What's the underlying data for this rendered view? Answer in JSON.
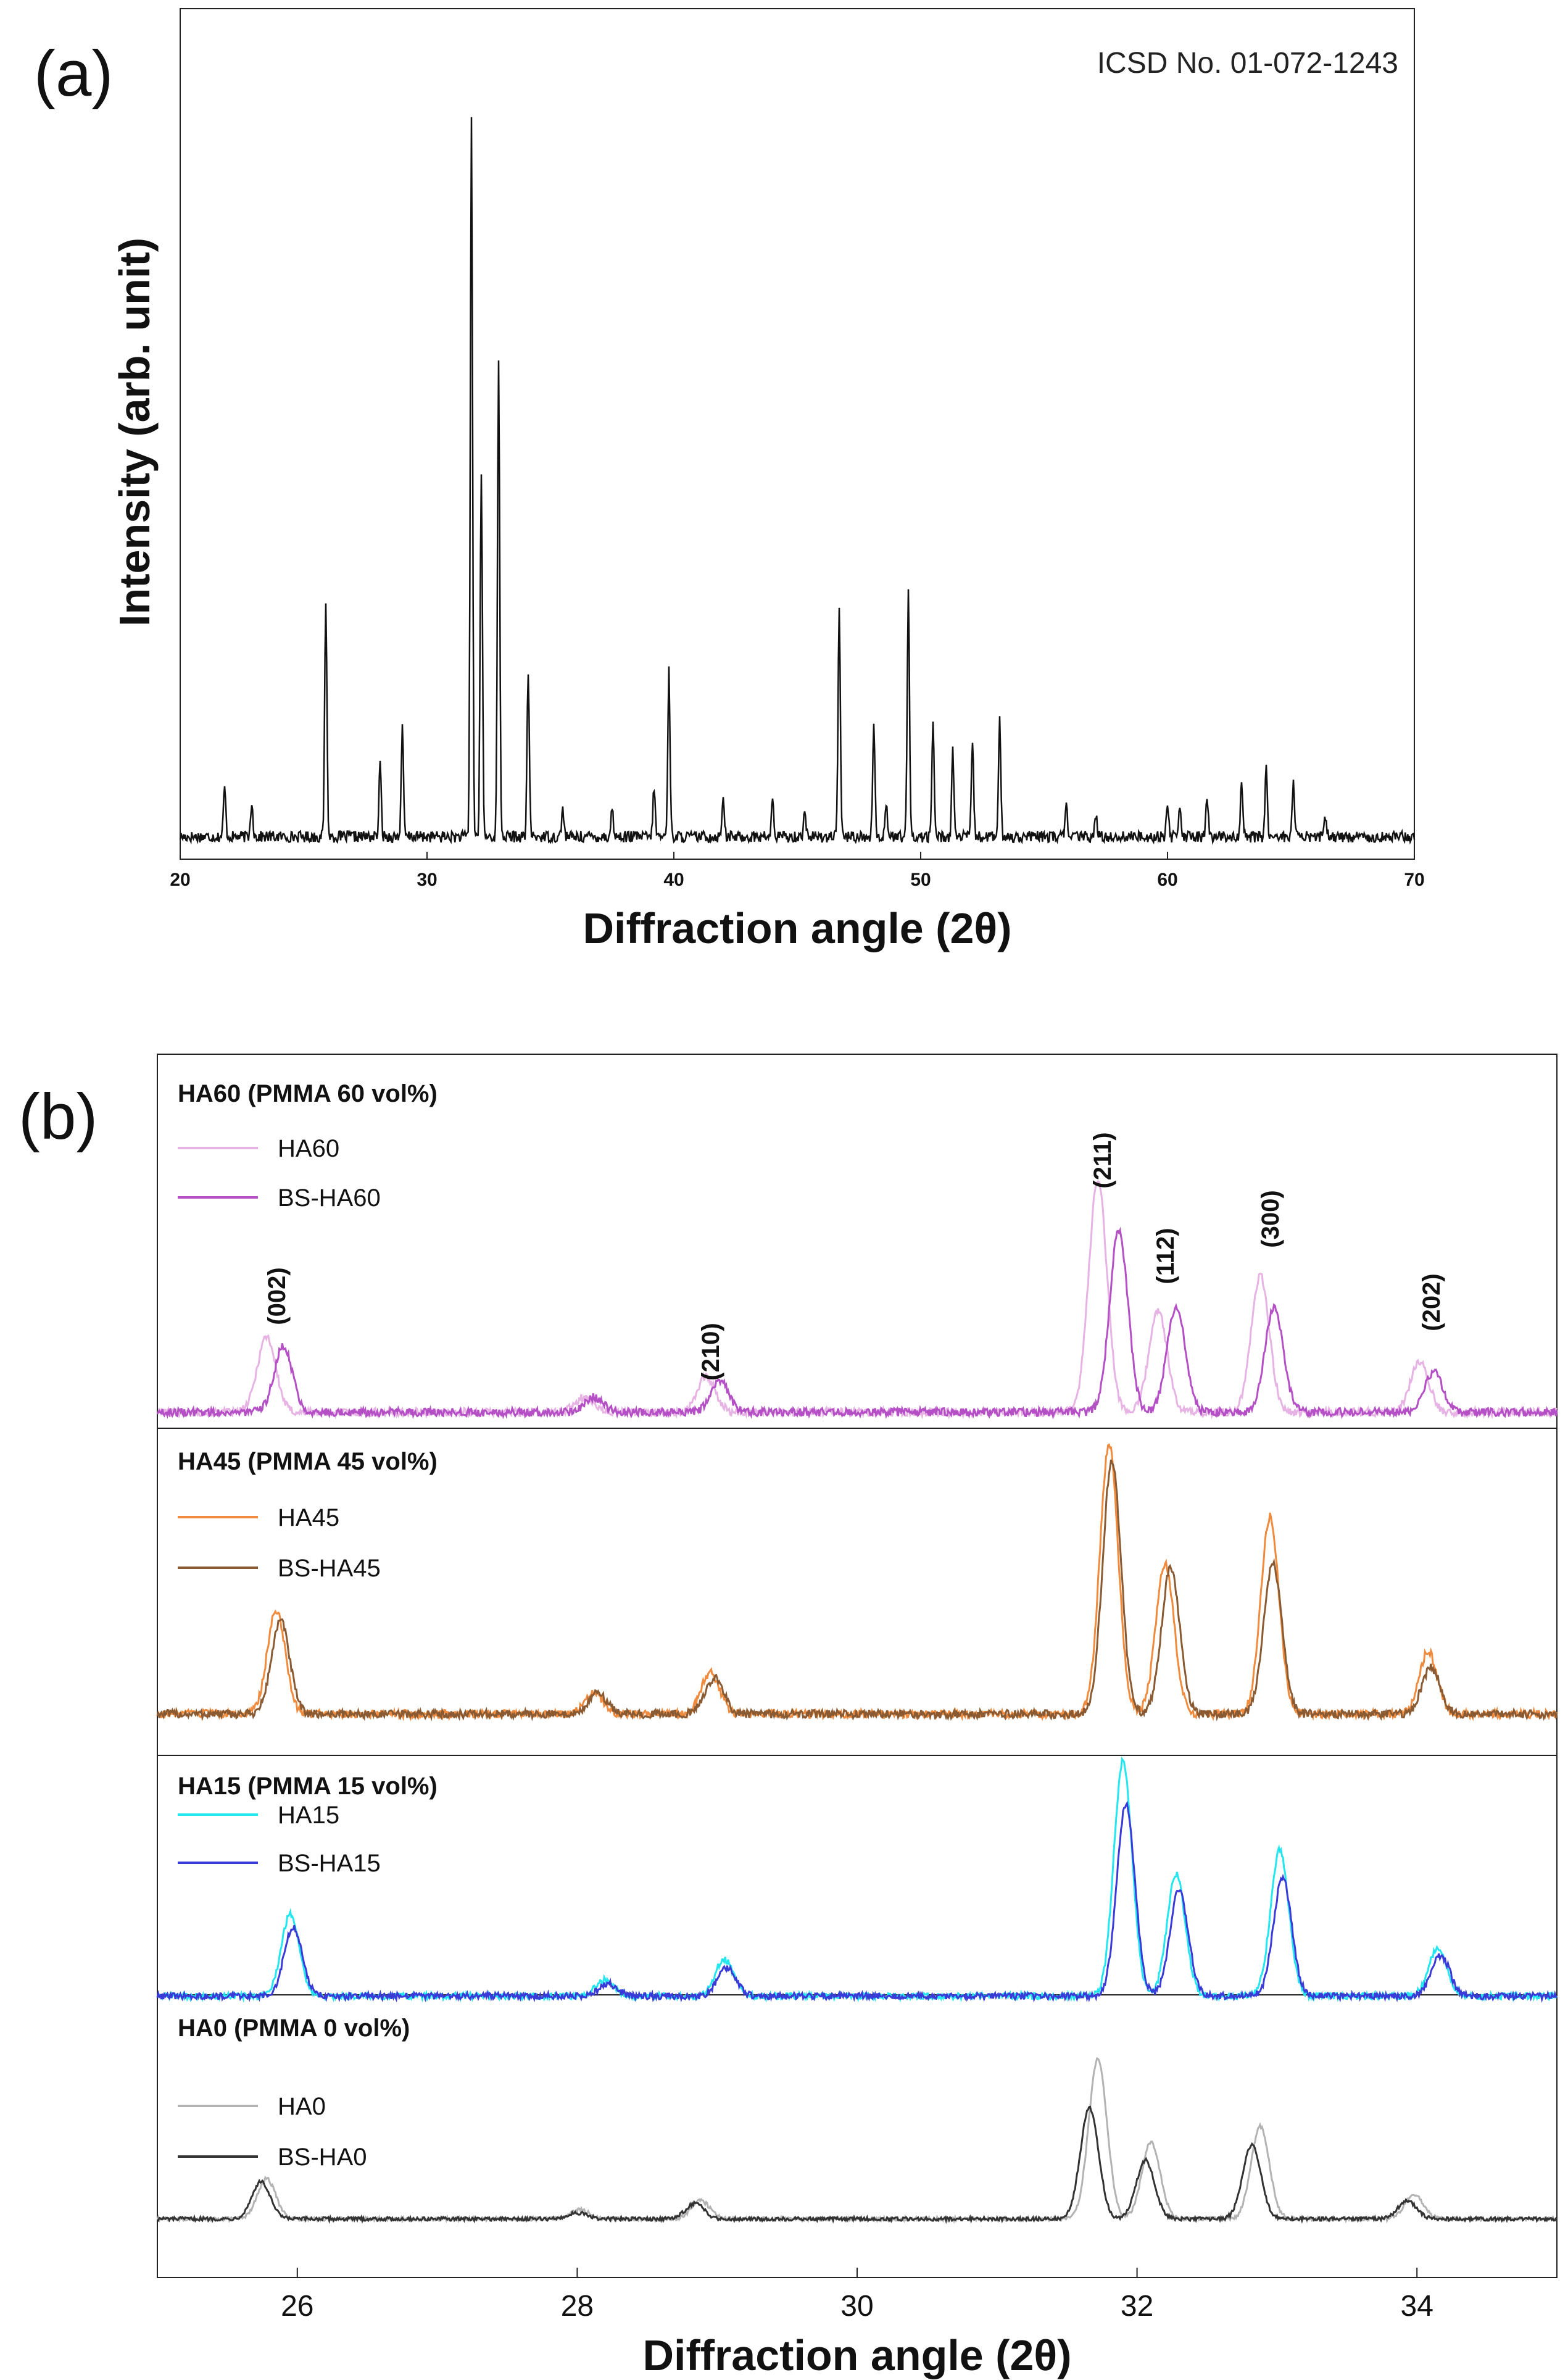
{
  "chart_data": [
    {
      "panel": "(a)",
      "type": "line",
      "title": "ICSD No. 01-072-1243",
      "xlabel": "Diffraction angle (2θ)",
      "ylabel": "Intensity (arb. unit)",
      "xlim": [
        20,
        70
      ],
      "xticks": [
        20,
        30,
        40,
        50,
        60,
        70
      ],
      "ylim": [
        0,
        100
      ],
      "baseline": 1.5,
      "noise_amp": 0.8,
      "peaks": [
        {
          "x": 21.8,
          "h": 7
        },
        {
          "x": 22.9,
          "h": 5
        },
        {
          "x": 25.9,
          "h": 33
        },
        {
          "x": 28.1,
          "h": 10
        },
        {
          "x": 29.0,
          "h": 15
        },
        {
          "x": 31.8,
          "h": 100
        },
        {
          "x": 32.2,
          "h": 51
        },
        {
          "x": 32.9,
          "h": 66
        },
        {
          "x": 34.1,
          "h": 23
        },
        {
          "x": 35.5,
          "h": 4
        },
        {
          "x": 37.5,
          "h": 4
        },
        {
          "x": 39.2,
          "h": 7
        },
        {
          "x": 39.8,
          "h": 23
        },
        {
          "x": 42.0,
          "h": 6
        },
        {
          "x": 44.0,
          "h": 5
        },
        {
          "x": 45.3,
          "h": 4
        },
        {
          "x": 46.7,
          "h": 32
        },
        {
          "x": 48.1,
          "h": 16
        },
        {
          "x": 48.6,
          "h": 5
        },
        {
          "x": 49.5,
          "h": 34
        },
        {
          "x": 50.5,
          "h": 16
        },
        {
          "x": 51.3,
          "h": 12
        },
        {
          "x": 52.1,
          "h": 13
        },
        {
          "x": 53.2,
          "h": 16
        },
        {
          "x": 55.9,
          "h": 5
        },
        {
          "x": 57.1,
          "h": 3
        },
        {
          "x": 60.0,
          "h": 5
        },
        {
          "x": 60.5,
          "h": 4
        },
        {
          "x": 61.6,
          "h": 6
        },
        {
          "x": 63.0,
          "h": 8
        },
        {
          "x": 64.0,
          "h": 10
        },
        {
          "x": 65.1,
          "h": 8
        },
        {
          "x": 66.4,
          "h": 3
        }
      ]
    },
    {
      "panel": "(b)",
      "type": "line",
      "xlabel": "Diffraction angle (2θ)",
      "xlim": [
        25,
        35
      ],
      "xticks": [
        26,
        28,
        30,
        32,
        34
      ],
      "peak_labels": [
        {
          "text": "(002)",
          "x": 25.85
        },
        {
          "text": "(210)",
          "x": 28.95
        },
        {
          "text": "(211)",
          "x": 31.75
        },
        {
          "text": "(112)",
          "x": 32.2
        },
        {
          "text": "(300)",
          "x": 32.95
        },
        {
          "text": "(202)",
          "x": 34.1
        }
      ],
      "groups": [
        {
          "title": "HA60 (PMMA 60 vol%)",
          "series": [
            {
              "name": "HA60",
              "color": "#e7b3e5",
              "width": 3,
              "noise_amp": 0.8,
              "peaks": [
                {
                  "x": 25.78,
                  "h": 15
                },
                {
                  "x": 28.05,
                  "h": 3
                },
                {
                  "x": 28.92,
                  "h": 7
                },
                {
                  "x": 31.72,
                  "h": 46
                },
                {
                  "x": 32.15,
                  "h": 20
                },
                {
                  "x": 32.88,
                  "h": 27
                },
                {
                  "x": 34.02,
                  "h": 10
                }
              ]
            },
            {
              "name": "BS-HA60",
              "color": "#b44fc6",
              "width": 3,
              "noise_amp": 0.8,
              "peaks": [
                {
                  "x": 25.9,
                  "h": 13
                },
                {
                  "x": 28.12,
                  "h": 3
                },
                {
                  "x": 29.02,
                  "h": 6
                },
                {
                  "x": 31.87,
                  "h": 36
                },
                {
                  "x": 32.28,
                  "h": 21
                },
                {
                  "x": 32.98,
                  "h": 21
                },
                {
                  "x": 34.12,
                  "h": 8
                }
              ]
            }
          ]
        },
        {
          "title": "HA45 (PMMA 45 vol%)",
          "series": [
            {
              "name": "HA45",
              "color": "#f08a3d",
              "width": 3,
              "noise_amp": 0.8,
              "peaks": [
                {
                  "x": 25.85,
                  "h": 20
                },
                {
                  "x": 28.12,
                  "h": 4
                },
                {
                  "x": 28.95,
                  "h": 8
                },
                {
                  "x": 31.8,
                  "h": 52
                },
                {
                  "x": 32.2,
                  "h": 29
                },
                {
                  "x": 32.95,
                  "h": 38
                },
                {
                  "x": 34.08,
                  "h": 12
                }
              ]
            },
            {
              "name": "BS-HA45",
              "color": "#8a5a32",
              "width": 3,
              "noise_amp": 0.8,
              "peaks": [
                {
                  "x": 25.88,
                  "h": 18
                },
                {
                  "x": 28.15,
                  "h": 4
                },
                {
                  "x": 28.98,
                  "h": 7
                },
                {
                  "x": 31.82,
                  "h": 49
                },
                {
                  "x": 32.24,
                  "h": 28
                },
                {
                  "x": 32.97,
                  "h": 29
                },
                {
                  "x": 34.1,
                  "h": 9
                }
              ]
            }
          ]
        },
        {
          "title": "HA15 (PMMA 15 vol%)",
          "series": [
            {
              "name": "HA15",
              "color": "#22e6f0",
              "width": 3,
              "noise_amp": 0.8,
              "peaks": [
                {
                  "x": 25.95,
                  "h": 20
                },
                {
                  "x": 28.2,
                  "h": 4
                },
                {
                  "x": 29.05,
                  "h": 9
                },
                {
                  "x": 31.9,
                  "h": 58
                },
                {
                  "x": 32.28,
                  "h": 30
                },
                {
                  "x": 33.02,
                  "h": 36
                },
                {
                  "x": 34.15,
                  "h": 12
                }
              ]
            },
            {
              "name": "BS-HA15",
              "color": "#3a3ad8",
              "width": 3,
              "noise_amp": 0.8,
              "peaks": [
                {
                  "x": 25.97,
                  "h": 17
                },
                {
                  "x": 28.22,
                  "h": 3
                },
                {
                  "x": 29.07,
                  "h": 7
                },
                {
                  "x": 31.92,
                  "h": 47
                },
                {
                  "x": 32.3,
                  "h": 26
                },
                {
                  "x": 33.04,
                  "h": 29
                },
                {
                  "x": 34.17,
                  "h": 10
                }
              ]
            }
          ]
        },
        {
          "title": "HA0 (PMMA 0 vol%)",
          "series": [
            {
              "name": "HA0",
              "color": "#b3b3b3",
              "width": 3,
              "noise_amp": 0.6,
              "peaks": [
                {
                  "x": 25.78,
                  "h": 13
                },
                {
                  "x": 28.02,
                  "h": 3
                },
                {
                  "x": 28.88,
                  "h": 6
                },
                {
                  "x": 31.72,
                  "h": 52
                },
                {
                  "x": 32.1,
                  "h": 25
                },
                {
                  "x": 32.88,
                  "h": 30
                },
                {
                  "x": 33.98,
                  "h": 8
                }
              ]
            },
            {
              "name": "BS-HA0",
              "color": "#333333",
              "width": 3,
              "noise_amp": 0.6,
              "peaks": [
                {
                  "x": 25.74,
                  "h": 12
                },
                {
                  "x": 28.0,
                  "h": 2
                },
                {
                  "x": 28.84,
                  "h": 5
                },
                {
                  "x": 31.66,
                  "h": 36
                },
                {
                  "x": 32.06,
                  "h": 19
                },
                {
                  "x": 32.82,
                  "h": 24
                },
                {
                  "x": 33.93,
                  "h": 6
                }
              ]
            }
          ]
        }
      ]
    }
  ]
}
